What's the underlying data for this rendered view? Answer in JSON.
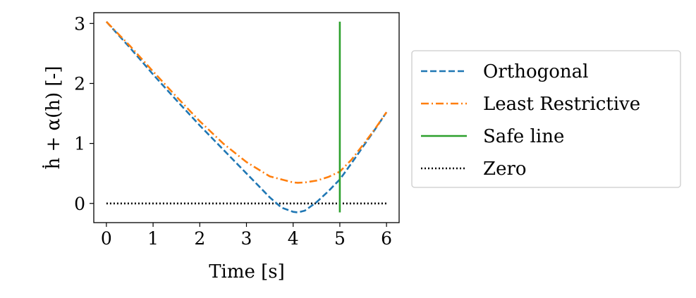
{
  "chart_data": {
    "type": "line",
    "xlabel": "Time [s]",
    "ylabel": "ḣ + α(h) [-]",
    "xlim": [
      -0.27,
      6.27
    ],
    "ylim": [
      -0.32,
      3.18
    ],
    "xticks": [
      0,
      1,
      2,
      3,
      4,
      5,
      6
    ],
    "yticks": [
      0,
      1,
      2,
      3
    ],
    "grid": false,
    "legend_position": "right-outside",
    "series": [
      {
        "name": "Orthogonal",
        "color": "#1f77b4",
        "dash": "dashed",
        "x": [
          0,
          0.5,
          1,
          1.5,
          2,
          2.5,
          3,
          3.25,
          3.5,
          3.75,
          4,
          4.1,
          4.25,
          4.5,
          4.75,
          5,
          5.25,
          5.5,
          5.75,
          6
        ],
        "y": [
          3.03,
          2.6,
          2.15,
          1.72,
          1.3,
          0.9,
          0.5,
          0.3,
          0.1,
          -0.07,
          -0.14,
          -0.15,
          -0.12,
          0.02,
          0.2,
          0.4,
          0.67,
          0.95,
          1.23,
          1.52
        ]
      },
      {
        "name": "Least Restrictive",
        "color": "#ff7f0e",
        "dash": "dashdot",
        "x": [
          0,
          0.5,
          1,
          1.5,
          2,
          2.5,
          3,
          3.5,
          4,
          4.1,
          4.25,
          4.5,
          4.75,
          5,
          5.25,
          5.5,
          5.75,
          6
        ],
        "y": [
          3.03,
          2.63,
          2.2,
          1.78,
          1.37,
          1.0,
          0.69,
          0.45,
          0.35,
          0.345,
          0.35,
          0.38,
          0.44,
          0.53,
          0.73,
          0.98,
          1.24,
          1.52
        ]
      },
      {
        "name": "Safe line",
        "color": "#2ca02c",
        "dash": "solid",
        "x": [
          5,
          5
        ],
        "y": [
          -0.15,
          3.03
        ]
      },
      {
        "name": "Zero",
        "color": "#000000",
        "dash": "dotted",
        "x": [
          0,
          6
        ],
        "y": [
          0,
          0
        ]
      }
    ]
  }
}
